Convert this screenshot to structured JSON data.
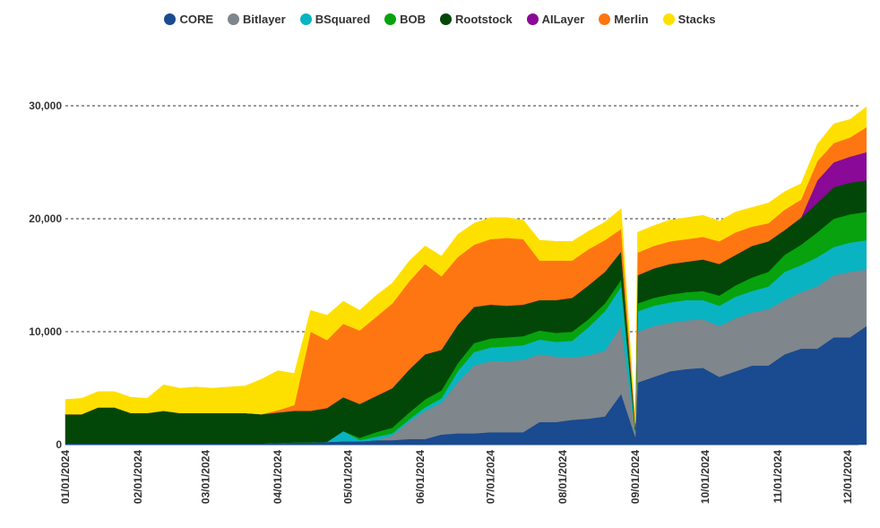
{
  "chart_data": {
    "type": "area",
    "stacked": true,
    "title": "",
    "xlabel": "",
    "ylabel": "",
    "ylim": [
      0,
      30000
    ],
    "grid": "horizontal-dashed",
    "legend_position": "top-center",
    "y_ticks": [
      0,
      10000,
      20000,
      30000
    ],
    "y_tick_labels": [
      "0",
      "10,000",
      "20,000",
      "30,000"
    ],
    "x_tick_labels": [
      "01/01/2024",
      "02/01/2024",
      "03/01/2024",
      "04/01/2024",
      "05/01/2024",
      "06/01/2024",
      "07/01/2024",
      "08/01/2024",
      "09/01/2024",
      "10/01/2024",
      "11/01/2024",
      "12/01/2024"
    ],
    "x": [
      "2024-01-01",
      "2024-01-08",
      "2024-01-15",
      "2024-01-22",
      "2024-01-29",
      "2024-02-05",
      "2024-02-12",
      "2024-02-19",
      "2024-02-26",
      "2024-03-04",
      "2024-03-11",
      "2024-03-18",
      "2024-03-25",
      "2024-04-01",
      "2024-04-08",
      "2024-04-15",
      "2024-04-22",
      "2024-04-29",
      "2024-05-06",
      "2024-05-13",
      "2024-05-20",
      "2024-05-27",
      "2024-06-03",
      "2024-06-10",
      "2024-06-17",
      "2024-06-24",
      "2024-07-01",
      "2024-07-08",
      "2024-07-15",
      "2024-07-22",
      "2024-07-29",
      "2024-08-05",
      "2024-08-12",
      "2024-08-19",
      "2024-08-26",
      "2024-09-01",
      "2024-09-02",
      "2024-09-09",
      "2024-09-16",
      "2024-09-23",
      "2024-09-30",
      "2024-10-07",
      "2024-10-14",
      "2024-10-21",
      "2024-10-28",
      "2024-11-04",
      "2024-11-11",
      "2024-11-18",
      "2024-11-25",
      "2024-12-02",
      "2024-12-09"
    ],
    "series": [
      {
        "name": "CORE",
        "color": "#1a4a8f",
        "values": [
          100,
          100,
          100,
          100,
          100,
          100,
          100,
          100,
          100,
          100,
          100,
          100,
          100,
          150,
          200,
          200,
          250,
          300,
          300,
          400,
          400,
          500,
          500,
          900,
          1000,
          1000,
          1100,
          1100,
          1100,
          2000,
          2000,
          2200,
          2300,
          2500,
          4500,
          700,
          5500,
          6000,
          6500,
          6700,
          6800,
          6000,
          6500,
          7000,
          7000,
          8000,
          8500,
          8500,
          9500,
          9500,
          10500
        ]
      },
      {
        "name": "Bitlayer",
        "color": "#7f868c",
        "values": [
          0,
          0,
          0,
          0,
          0,
          0,
          0,
          0,
          0,
          0,
          0,
          0,
          0,
          0,
          0,
          0,
          0,
          0,
          0,
          0,
          400,
          1500,
          2500,
          2800,
          4500,
          6000,
          6300,
          6300,
          6400,
          6000,
          5800,
          5500,
          5600,
          5800,
          6000,
          400,
          4500,
          4500,
          4300,
          4300,
          4300,
          4500,
          4700,
          4700,
          5000,
          4800,
          5000,
          5500,
          5500,
          5800,
          5000
        ]
      },
      {
        "name": "BSquared",
        "color": "#0ab3c1",
        "values": [
          0,
          0,
          0,
          0,
          0,
          0,
          0,
          0,
          0,
          0,
          0,
          0,
          0,
          0,
          0,
          0,
          0,
          900,
          100,
          300,
          200,
          200,
          300,
          400,
          1000,
          1200,
          1200,
          1300,
          1300,
          1300,
          1300,
          1500,
          2500,
          3500,
          3500,
          100,
          1800,
          1800,
          1800,
          1800,
          1700,
          1800,
          1900,
          1900,
          2000,
          2500,
          2400,
          2600,
          2500,
          2600,
          2600
        ]
      },
      {
        "name": "BOB",
        "color": "#07a20d",
        "values": [
          0,
          0,
          0,
          0,
          0,
          0,
          0,
          0,
          0,
          0,
          0,
          0,
          0,
          0,
          0,
          0,
          0,
          0,
          200,
          400,
          500,
          600,
          700,
          700,
          700,
          800,
          800,
          800,
          800,
          800,
          800,
          800,
          700,
          700,
          600,
          100,
          700,
          700,
          700,
          700,
          800,
          900,
          1000,
          1200,
          1300,
          1500,
          1800,
          2200,
          2500,
          2500,
          2500
        ]
      },
      {
        "name": "Rootstock",
        "color": "#034708",
        "values": [
          2600,
          2600,
          3200,
          3200,
          2700,
          2700,
          2900,
          2700,
          2700,
          2700,
          2700,
          2700,
          2600,
          2700,
          2800,
          2800,
          3000,
          3000,
          3000,
          3200,
          3500,
          3800,
          4000,
          3600,
          3400,
          3200,
          3000,
          2800,
          2800,
          2700,
          2900,
          3000,
          3000,
          2800,
          2500,
          300,
          2500,
          2600,
          2700,
          2700,
          2800,
          2800,
          2700,
          2800,
          2700,
          2200,
          2400,
          2600,
          2800,
          2800,
          2800
        ]
      },
      {
        "name": "AILayer",
        "color": "#8a0996",
        "values": [
          0,
          0,
          0,
          0,
          0,
          0,
          0,
          0,
          0,
          0,
          0,
          0,
          0,
          0,
          0,
          0,
          0,
          0,
          0,
          0,
          0,
          0,
          0,
          0,
          0,
          0,
          0,
          0,
          0,
          0,
          0,
          0,
          0,
          0,
          0,
          0,
          0,
          0,
          0,
          0,
          0,
          0,
          0,
          0,
          0,
          0,
          0,
          2000,
          2200,
          2300,
          2500
        ]
      },
      {
        "name": "Merlin",
        "color": "#fe7611",
        "values": [
          0,
          0,
          0,
          0,
          0,
          0,
          0,
          0,
          0,
          0,
          0,
          0,
          0,
          200,
          500,
          7000,
          6000,
          6500,
          6500,
          7000,
          7500,
          7800,
          8000,
          6500,
          6000,
          5500,
          5800,
          6000,
          5800,
          3500,
          3500,
          3300,
          3200,
          2800,
          2000,
          300,
          2000,
          2000,
          2000,
          2000,
          2000,
          2000,
          2000,
          1700,
          1600,
          1800,
          1600,
          1700,
          1700,
          1700,
          2200
        ]
      },
      {
        "name": "Stacks",
        "color": "#fee000",
        "values": [
          1300,
          1400,
          1400,
          1400,
          1400,
          1300,
          2300,
          2200,
          2300,
          2200,
          2300,
          2400,
          3100,
          3500,
          2800,
          1900,
          2200,
          2000,
          1800,
          1900,
          1800,
          1800,
          1600,
          1800,
          2000,
          1900,
          1900,
          1800,
          1700,
          1800,
          1700,
          1700,
          1600,
          1600,
          1800,
          200,
          1800,
          1800,
          1900,
          1900,
          1900,
          1800,
          1800,
          1700,
          1800,
          1600,
          1400,
          1500,
          1700,
          1600,
          1800
        ]
      }
    ]
  }
}
